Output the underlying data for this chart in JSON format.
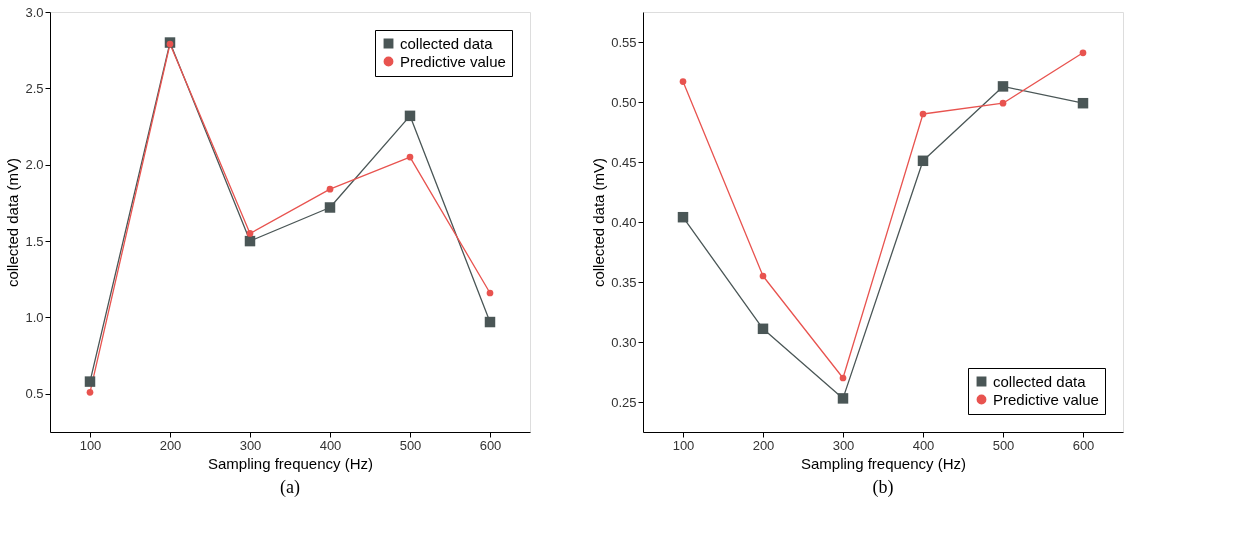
{
  "chart_data": [
    {
      "type": "line",
      "title": "(a)",
      "xlabel": "Sampling frequency (Hz)",
      "ylabel": "collected data (mV)",
      "x": [
        100,
        200,
        300,
        400,
        500,
        600
      ],
      "xlim": [
        50,
        650
      ],
      "xticks": [
        100,
        200,
        300,
        400,
        500,
        600
      ],
      "ylim": [
        0.25,
        3.0
      ],
      "yticks": [
        {
          "value": 0.5,
          "label": "0.5"
        },
        {
          "value": 1,
          "label": "1.0"
        },
        {
          "value": 1.5,
          "label": "1.5"
        },
        {
          "value": 2,
          "label": "2.0"
        },
        {
          "value": 2.5,
          "label": "2.5"
        },
        {
          "value": 3,
          "label": "3.0"
        }
      ],
      "grid": false,
      "legend": "top right",
      "line_style": "solid",
      "series": [
        {
          "name": "collected data",
          "color": "#4a5656",
          "marker": "square",
          "values": [
            0.58,
            2.8,
            1.5,
            1.72,
            2.32,
            0.97
          ]
        },
        {
          "name": "Predictive value",
          "color": "#e8534f",
          "marker": "circle",
          "values": [
            0.51,
            2.79,
            1.55,
            1.84,
            2.05,
            1.16
          ]
        }
      ]
    },
    {
      "type": "line",
      "title": "(b)",
      "xlabel": "Sampling frequency (Hz)",
      "ylabel": "collected data (mV)",
      "x": [
        100,
        200,
        300,
        400,
        500,
        600
      ],
      "xlim": [
        50,
        650
      ],
      "xticks": [
        100,
        200,
        300,
        400,
        500,
        600
      ],
      "ylim": [
        0.225,
        0.575
      ],
      "yticks": [
        {
          "value": 0.25,
          "label": "0.25"
        },
        {
          "value": 0.3,
          "label": "0.30"
        },
        {
          "value": 0.35,
          "label": "0.35"
        },
        {
          "value": 0.4,
          "label": "0.40"
        },
        {
          "value": 0.45,
          "label": "0.45"
        },
        {
          "value": 0.5,
          "label": "0.50"
        },
        {
          "value": 0.55,
          "label": "0.55"
        }
      ],
      "grid": false,
      "legend": "bottom right",
      "line_style": "solid",
      "series": [
        {
          "name": "collected data",
          "color": "#4a5656",
          "marker": "square",
          "values": [
            0.404,
            0.311,
            0.253,
            0.451,
            0.513,
            0.499
          ]
        },
        {
          "name": "Predictive value",
          "color": "#e8534f",
          "marker": "circle",
          "values": [
            0.517,
            0.355,
            0.27,
            0.49,
            0.499,
            0.541
          ]
        }
      ]
    }
  ]
}
